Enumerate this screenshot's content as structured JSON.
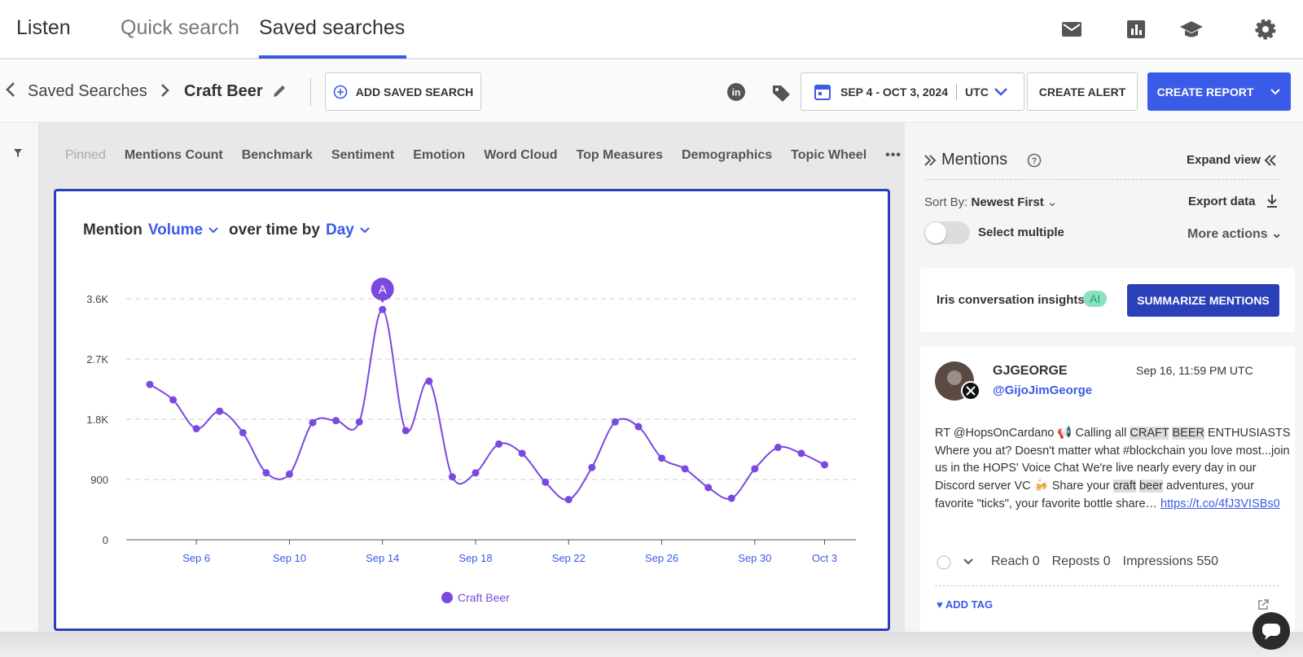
{
  "nav": {
    "brand": "Listen",
    "tabs": [
      "Quick search",
      "Saved searches"
    ]
  },
  "toolbar": {
    "breadcrumb": "Saved Searches",
    "search": "Craft Beer",
    "add_saved_search": "ADD SAVED SEARCH",
    "date_range": "SEP 4 - OCT 3, 2024",
    "timezone": "UTC",
    "create_alert": "CREATE ALERT",
    "create_report": "CREATE REPORT"
  },
  "widget_tabs": [
    "Pinned",
    "Mentions Count",
    "Benchmark",
    "Sentiment",
    "Emotion",
    "Word Cloud",
    "Top Measures",
    "Demographics",
    "Topic Wheel"
  ],
  "chart_heading": {
    "prefix": "Mention",
    "measure": "Volume",
    "middle": "over time by",
    "period": "Day"
  },
  "chart_data": {
    "type": "line",
    "categories": [
      null,
      null,
      "Sep 6",
      null,
      null,
      null,
      "Sep 10",
      null,
      null,
      null,
      "Sep 14",
      null,
      null,
      null,
      "Sep 18",
      null,
      null,
      null,
      "Sep 22",
      null,
      null,
      null,
      "Sep 26",
      null,
      null,
      null,
      "Sep 30",
      null,
      null,
      "Oct 3"
    ],
    "series": [
      {
        "name": "Craft Beer",
        "color": "#7b48e0",
        "values": [
          2320,
          2090,
          1660,
          1920,
          1600,
          1000,
          980,
          1750,
          1780,
          1760,
          3440,
          1630,
          2370,
          940,
          1000,
          1430,
          1290,
          860,
          600,
          1080,
          1760,
          1690,
          1220,
          1060,
          780,
          620,
          1060,
          1380,
          1290,
          1120
        ]
      }
    ],
    "ylim": [
      0,
      3600
    ],
    "yticks": [
      0,
      900,
      {
        "value": 1800,
        "label": "1.8K"
      },
      {
        "value": 2700,
        "label": "2.7K"
      },
      {
        "value": 3600,
        "label": "3.6K"
      }
    ],
    "grid": true,
    "annotations": [
      {
        "text": "A",
        "category": "Sep 14"
      }
    ]
  },
  "mentions": {
    "title": "Mentions",
    "expand": "Expand view",
    "sort_label": "Sort By:",
    "sort": "Newest First",
    "export": "Export data",
    "select_multiple": "Select multiple",
    "more_actions": "More actions",
    "insights": "Iris conversation insights",
    "ai": "AI",
    "summarize": "SUMMARIZE MENTIONS",
    "post": {
      "name": "GJGEORGE",
      "handle": "@GijoJimGeorge",
      "time": "Sep 16, 11:59 PM UTC",
      "text_segments": [
        "RT @HopsOnCardano 📢 Calling all ",
        "CRAFT",
        " ",
        "BEER",
        " ENTHUSIASTS Where you at? Doesn't matter what #blockchain you love most...join us in the HOPS' Voice Chat We're live nearly every day in our Discord server VC 🍻 Share your ",
        "craft",
        " ",
        "beer",
        " adventures, your favorite \"ticks\", your favorite bottle share… "
      ],
      "link": "https://t.co/4fJ3VISBs0",
      "stats": [
        "Reach 0",
        "Reposts 0",
        "Impressions 550"
      ],
      "add_tag": "ADD TAG"
    }
  }
}
